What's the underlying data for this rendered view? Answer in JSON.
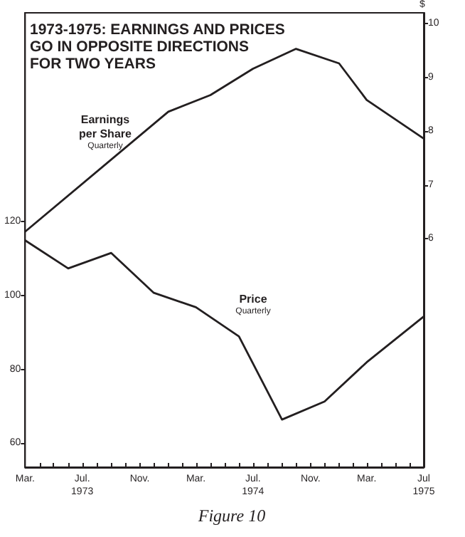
{
  "chart_data": {
    "type": "line",
    "title": "1973-1975: EARNINGS AND PRICES\nGO IN OPPOSITE DIRECTIONS\nFOR TWO YEARS",
    "y2label": "$",
    "annotations": [
      "Quarterly",
      "Quarterly",
      "Figure 10"
    ],
    "series": [
      {
        "name": "Earnings\nper Share",
        "color": "#231f20",
        "axis": "y2",
        "x": [
          "1973-03",
          "1974-01",
          "1974-04",
          "1974-07",
          "1974-10",
          "1975-01",
          "1975-03",
          "1975-07"
        ],
        "values": [
          6.13,
          8.36,
          8.67,
          9.16,
          9.53,
          9.26,
          8.58,
          7.86
        ]
      },
      {
        "name": "Price",
        "color": "#231f20",
        "x": [
          "1973-03",
          "1973-06",
          "1973-09",
          "1973-12",
          "1974-03",
          "1974-06",
          "1974-09",
          "1974-12",
          "1975-03",
          "1975-07"
        ],
        "values": [
          114.9,
          107.3,
          111.5,
          100.7,
          96.8,
          88.9,
          66.4,
          71.3,
          81.9,
          94.3
        ]
      }
    ],
    "xlim": [
      "1973-03",
      "1975-07"
    ],
    "xticks": [
      {
        "value": "1973-03",
        "label": "Mar."
      },
      {
        "value": "1973-04",
        "label": null
      },
      {
        "value": "1973-05",
        "label": null
      },
      {
        "value": "1973-06",
        "label": null
      },
      {
        "value": "1973-07",
        "label": "Jul.\n1973"
      },
      {
        "value": "1973-08",
        "label": null
      },
      {
        "value": "1973-09",
        "label": null
      },
      {
        "value": "1973-10",
        "label": null
      },
      {
        "value": "1973-11",
        "label": "Nov."
      },
      {
        "value": "1973-12",
        "label": null
      },
      {
        "value": "1974-01",
        "label": null
      },
      {
        "value": "1974-02",
        "label": null
      },
      {
        "value": "1974-03",
        "label": "Mar."
      },
      {
        "value": "1974-04",
        "label": null
      },
      {
        "value": "1974-05",
        "label": null
      },
      {
        "value": "1974-06",
        "label": null
      },
      {
        "value": "1974-07",
        "label": "Jul.\n1974"
      },
      {
        "value": "1974-08",
        "label": null
      },
      {
        "value": "1974-09",
        "label": null
      },
      {
        "value": "1974-10",
        "label": null
      },
      {
        "value": "1974-11",
        "label": "Nov."
      },
      {
        "value": "1974-12",
        "label": null
      },
      {
        "value": "1975-01",
        "label": null
      },
      {
        "value": "1975-02",
        "label": null
      },
      {
        "value": "1975-03",
        "label": "Mar."
      },
      {
        "value": "1975-04",
        "label": null
      },
      {
        "value": "1975-05",
        "label": null
      },
      {
        "value": "1975-06",
        "label": null
      },
      {
        "value": "1975-07",
        "label": "Jul\n1975"
      }
    ],
    "ylim": [
      53.5,
      176.5
    ],
    "yticks": [
      60,
      80,
      100,
      120
    ],
    "y2lim": [
      1.75,
      10.2
    ],
    "y2ticks": [
      6,
      7,
      8,
      9,
      10
    ],
    "grid": false,
    "legend": false,
    "marker": "none",
    "line_style": "solid"
  }
}
